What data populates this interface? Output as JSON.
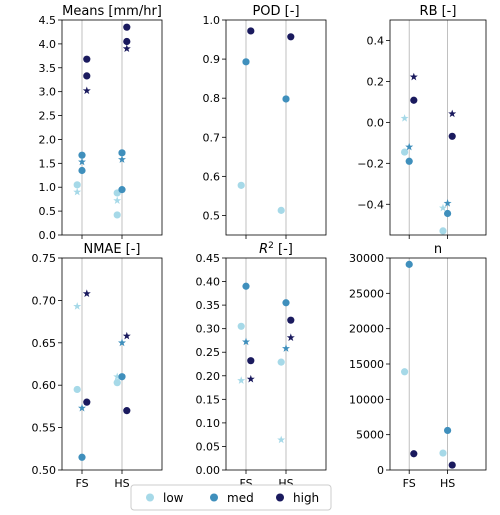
{
  "chart_data": [
    {
      "type": "scatter",
      "title": "Means [mm/hr]",
      "categories": [
        "FS",
        "HS"
      ],
      "ylim": [
        0.0,
        4.5
      ],
      "yticks": [
        "0.0",
        "0.5",
        "1.0",
        "1.5",
        "2.0",
        "2.5",
        "3.0",
        "3.5",
        "4.0",
        "4.5"
      ],
      "xticklabels_shown": false,
      "grid": "vertical",
      "points": [
        {
          "series": "low",
          "category": "FS",
          "offset": -0.12,
          "value": 1.05,
          "marker": "dot"
        },
        {
          "series": "low",
          "category": "FS",
          "offset": -0.12,
          "value": 0.9,
          "marker": "star"
        },
        {
          "series": "med",
          "category": "FS",
          "offset": 0.0,
          "value": 1.67,
          "marker": "dot"
        },
        {
          "series": "med",
          "category": "FS",
          "offset": 0.0,
          "value": 1.53,
          "marker": "star"
        },
        {
          "series": "med",
          "category": "FS",
          "offset": 0.0,
          "value": 1.35,
          "marker": "dot"
        },
        {
          "series": "high",
          "category": "FS",
          "offset": 0.12,
          "value": 3.68,
          "marker": "dot"
        },
        {
          "series": "high",
          "category": "FS",
          "offset": 0.12,
          "value": 3.33,
          "marker": "dot"
        },
        {
          "series": "high",
          "category": "FS",
          "offset": 0.12,
          "value": 3.02,
          "marker": "star"
        },
        {
          "series": "low",
          "category": "HS",
          "offset": -0.12,
          "value": 0.88,
          "marker": "dot"
        },
        {
          "series": "low",
          "category": "HS",
          "offset": -0.12,
          "value": 0.72,
          "marker": "star"
        },
        {
          "series": "low",
          "category": "HS",
          "offset": -0.12,
          "value": 0.42,
          "marker": "dot"
        },
        {
          "series": "med",
          "category": "HS",
          "offset": 0.0,
          "value": 1.72,
          "marker": "dot"
        },
        {
          "series": "med",
          "category": "HS",
          "offset": 0.0,
          "value": 1.58,
          "marker": "star"
        },
        {
          "series": "med",
          "category": "HS",
          "offset": 0.0,
          "value": 0.95,
          "marker": "dot"
        },
        {
          "series": "high",
          "category": "HS",
          "offset": 0.12,
          "value": 4.35,
          "marker": "dot"
        },
        {
          "series": "high",
          "category": "HS",
          "offset": 0.12,
          "value": 4.05,
          "marker": "dot"
        },
        {
          "series": "high",
          "category": "HS",
          "offset": 0.12,
          "value": 3.9,
          "marker": "star"
        }
      ]
    },
    {
      "type": "scatter",
      "title": "POD [-]",
      "categories": [
        "FS",
        "HS"
      ],
      "ylim": [
        0.45,
        1.0
      ],
      "yticks": [
        "0.5",
        "0.6",
        "0.7",
        "0.8",
        "0.9",
        "1.0"
      ],
      "xticklabels_shown": false,
      "grid": "vertical",
      "points": [
        {
          "series": "low",
          "category": "FS",
          "offset": -0.12,
          "value": 0.577,
          "marker": "dot"
        },
        {
          "series": "med",
          "category": "FS",
          "offset": 0.0,
          "value": 0.893,
          "marker": "dot"
        },
        {
          "series": "high",
          "category": "FS",
          "offset": 0.12,
          "value": 0.972,
          "marker": "dot"
        },
        {
          "series": "low",
          "category": "HS",
          "offset": -0.12,
          "value": 0.513,
          "marker": "dot"
        },
        {
          "series": "med",
          "category": "HS",
          "offset": 0.0,
          "value": 0.798,
          "marker": "dot"
        },
        {
          "series": "high",
          "category": "HS",
          "offset": 0.12,
          "value": 0.957,
          "marker": "dot"
        }
      ]
    },
    {
      "type": "scatter",
      "title": "RB [-]",
      "categories": [
        "FS",
        "HS"
      ],
      "ylim": [
        -0.55,
        0.5
      ],
      "yticks": [
        "−0.4",
        "−0.2",
        "0.0",
        "0.2",
        "0.4"
      ],
      "xticklabels_shown": false,
      "grid": "vertical",
      "points": [
        {
          "series": "low",
          "category": "FS",
          "offset": -0.12,
          "value": 0.02,
          "marker": "star"
        },
        {
          "series": "low",
          "category": "FS",
          "offset": -0.12,
          "value": -0.145,
          "marker": "dot"
        },
        {
          "series": "med",
          "category": "FS",
          "offset": 0.0,
          "value": -0.12,
          "marker": "star"
        },
        {
          "series": "med",
          "category": "FS",
          "offset": 0.0,
          "value": -0.19,
          "marker": "dot"
        },
        {
          "series": "high",
          "category": "FS",
          "offset": 0.12,
          "value": 0.222,
          "marker": "star"
        },
        {
          "series": "high",
          "category": "FS",
          "offset": 0.12,
          "value": 0.108,
          "marker": "dot"
        },
        {
          "series": "low",
          "category": "HS",
          "offset": -0.12,
          "value": -0.418,
          "marker": "star"
        },
        {
          "series": "low",
          "category": "HS",
          "offset": -0.12,
          "value": -0.53,
          "marker": "dot"
        },
        {
          "series": "med",
          "category": "HS",
          "offset": 0.0,
          "value": -0.395,
          "marker": "star"
        },
        {
          "series": "med",
          "category": "HS",
          "offset": 0.0,
          "value": -0.445,
          "marker": "dot"
        },
        {
          "series": "high",
          "category": "HS",
          "offset": 0.12,
          "value": 0.042,
          "marker": "star"
        },
        {
          "series": "high",
          "category": "HS",
          "offset": 0.12,
          "value": -0.068,
          "marker": "dot"
        }
      ]
    },
    {
      "type": "scatter",
      "title": "NMAE [-]",
      "categories": [
        "FS",
        "HS"
      ],
      "ylim": [
        0.5,
        0.75
      ],
      "yticks": [
        "0.50",
        "0.55",
        "0.60",
        "0.65",
        "0.70",
        "0.75"
      ],
      "xticklabels_shown": true,
      "grid": "vertical",
      "points": [
        {
          "series": "low",
          "category": "FS",
          "offset": -0.12,
          "value": 0.693,
          "marker": "star"
        },
        {
          "series": "low",
          "category": "FS",
          "offset": -0.12,
          "value": 0.595,
          "marker": "dot"
        },
        {
          "series": "med",
          "category": "FS",
          "offset": 0.0,
          "value": 0.573,
          "marker": "star"
        },
        {
          "series": "med",
          "category": "FS",
          "offset": 0.0,
          "value": 0.515,
          "marker": "dot"
        },
        {
          "series": "high",
          "category": "FS",
          "offset": 0.12,
          "value": 0.708,
          "marker": "star"
        },
        {
          "series": "high",
          "category": "FS",
          "offset": 0.12,
          "value": 0.58,
          "marker": "dot"
        },
        {
          "series": "low",
          "category": "HS",
          "offset": -0.12,
          "value": 0.61,
          "marker": "star"
        },
        {
          "series": "low",
          "category": "HS",
          "offset": -0.12,
          "value": 0.603,
          "marker": "dot"
        },
        {
          "series": "med",
          "category": "HS",
          "offset": 0.0,
          "value": 0.65,
          "marker": "star"
        },
        {
          "series": "med",
          "category": "HS",
          "offset": 0.0,
          "value": 0.61,
          "marker": "dot"
        },
        {
          "series": "high",
          "category": "HS",
          "offset": 0.12,
          "value": 0.658,
          "marker": "star"
        },
        {
          "series": "high",
          "category": "HS",
          "offset": 0.12,
          "value": 0.57,
          "marker": "dot"
        }
      ]
    },
    {
      "type": "scatter",
      "title": "R",
      "title_superscript": "2",
      "title_suffix": " [-]",
      "categories": [
        "FS",
        "HS"
      ],
      "ylim": [
        0.0,
        0.45
      ],
      "yticks": [
        "0.00",
        "0.05",
        "0.10",
        "0.15",
        "0.20",
        "0.25",
        "0.30",
        "0.35",
        "0.40",
        "0.45"
      ],
      "xticklabels_shown": true,
      "grid": "vertical",
      "points": [
        {
          "series": "low",
          "category": "FS",
          "offset": -0.12,
          "value": 0.305,
          "marker": "dot"
        },
        {
          "series": "low",
          "category": "FS",
          "offset": -0.12,
          "value": 0.19,
          "marker": "star"
        },
        {
          "series": "med",
          "category": "FS",
          "offset": 0.0,
          "value": 0.39,
          "marker": "dot"
        },
        {
          "series": "med",
          "category": "FS",
          "offset": 0.0,
          "value": 0.272,
          "marker": "star"
        },
        {
          "series": "high",
          "category": "FS",
          "offset": 0.12,
          "value": 0.232,
          "marker": "dot"
        },
        {
          "series": "high",
          "category": "FS",
          "offset": 0.12,
          "value": 0.193,
          "marker": "star"
        },
        {
          "series": "low",
          "category": "HS",
          "offset": -0.12,
          "value": 0.229,
          "marker": "dot"
        },
        {
          "series": "low",
          "category": "HS",
          "offset": -0.12,
          "value": 0.064,
          "marker": "star"
        },
        {
          "series": "med",
          "category": "HS",
          "offset": 0.0,
          "value": 0.355,
          "marker": "dot"
        },
        {
          "series": "med",
          "category": "HS",
          "offset": 0.0,
          "value": 0.258,
          "marker": "star"
        },
        {
          "series": "high",
          "category": "HS",
          "offset": 0.12,
          "value": 0.318,
          "marker": "dot"
        },
        {
          "series": "high",
          "category": "HS",
          "offset": 0.12,
          "value": 0.281,
          "marker": "star"
        }
      ]
    },
    {
      "type": "scatter",
      "title": "n",
      "categories": [
        "FS",
        "HS"
      ],
      "ylim": [
        0,
        30000
      ],
      "yticks": [
        "0",
        "5000",
        "10000",
        "15000",
        "20000",
        "25000",
        "30000"
      ],
      "xticklabels_shown": true,
      "grid": "vertical",
      "points": [
        {
          "series": "low",
          "category": "FS",
          "offset": -0.12,
          "value": 13900,
          "marker": "dot"
        },
        {
          "series": "med",
          "category": "FS",
          "offset": 0.0,
          "value": 29100,
          "marker": "dot"
        },
        {
          "series": "high",
          "category": "FS",
          "offset": 0.12,
          "value": 2300,
          "marker": "dot"
        },
        {
          "series": "low",
          "category": "HS",
          "offset": -0.12,
          "value": 2400,
          "marker": "dot"
        },
        {
          "series": "med",
          "category": "HS",
          "offset": 0.0,
          "value": 5600,
          "marker": "dot"
        },
        {
          "series": "high",
          "category": "HS",
          "offset": 0.12,
          "value": 700,
          "marker": "dot"
        }
      ]
    }
  ],
  "legend": {
    "placement": "bottom-center",
    "items": [
      {
        "series": "low",
        "label": "low"
      },
      {
        "series": "med",
        "label": "med"
      },
      {
        "series": "high",
        "label": "high"
      }
    ]
  },
  "colors": {
    "low": "#a6d9e8",
    "med": "#3f8fbc",
    "high": "#1a1a5e",
    "grid": "#b0b0b0",
    "axis": "#000000"
  }
}
